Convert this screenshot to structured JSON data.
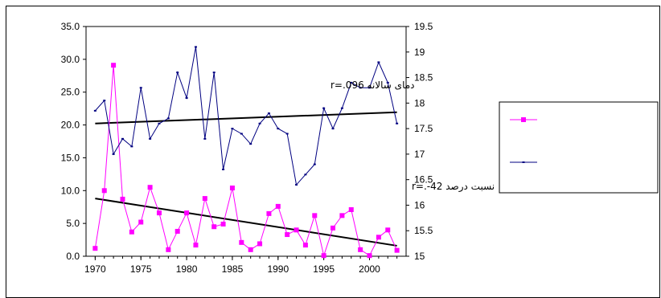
{
  "chart_data": {
    "type": "line",
    "x": [
      1970,
      1971,
      1972,
      1973,
      1974,
      1975,
      1976,
      1977,
      1978,
      1979,
      1980,
      1981,
      1982,
      1983,
      1984,
      1985,
      1986,
      1987,
      1988,
      1989,
      1990,
      1991,
      1992,
      1993,
      1994,
      1995,
      1996,
      1997,
      1998,
      1999,
      2000,
      2001,
      2002,
      2003
    ],
    "xlim": [
      1969,
      2004
    ],
    "xticks": [
      "1970",
      "1975",
      "1980",
      "1985",
      "1990",
      "1995",
      "2000"
    ],
    "y_left": {
      "ylim": [
        0,
        35
      ],
      "ticks": [
        "0.0",
        "5.0",
        "10.0",
        "15.0",
        "20.0",
        "25.0",
        "30.0",
        "35.0"
      ]
    },
    "y_right": {
      "ylim": [
        15,
        19.5
      ],
      "ticks": [
        "15",
        "15.5",
        "16",
        "16.5",
        "17",
        "17.5",
        "18",
        "18.5",
        "19",
        "19.5"
      ]
    },
    "series": [
      {
        "axis": "left",
        "color": "#ff00ff",
        "marker": "square",
        "values": [
          1.2,
          10.0,
          29.1,
          8.7,
          3.7,
          5.2,
          10.5,
          6.6,
          1.0,
          3.8,
          6.6,
          1.7,
          8.8,
          4.5,
          4.9,
          10.4,
          2.1,
          1.0,
          1.9,
          6.5,
          7.6,
          3.3,
          4.0,
          1.7,
          6.2,
          0.1,
          4.3,
          6.2,
          7.1,
          1.0,
          0.1,
          2.9,
          4.0,
          0.9
        ]
      },
      {
        "axis": "right",
        "color": "#000080",
        "marker": "dash",
        "values": [
          17.85,
          18.05,
          17.0,
          17.3,
          17.15,
          18.3,
          17.3,
          17.6,
          17.7,
          18.6,
          18.1,
          19.1,
          17.3,
          18.6,
          16.7,
          17.5,
          17.4,
          17.2,
          17.6,
          17.8,
          17.5,
          17.4,
          16.4,
          16.6,
          16.8,
          17.9,
          17.5,
          17.9,
          18.4,
          18.3,
          18.3,
          18.8,
          18.4,
          17.6
        ]
      }
    ],
    "trendlines": [
      {
        "axis": "right",
        "x": [
          1970,
          2003
        ],
        "y": [
          17.6,
          17.82
        ],
        "color": "#000000"
      },
      {
        "axis": "left",
        "x": [
          1970,
          2003
        ],
        "y": [
          8.8,
          1.6
        ],
        "color": "#000000"
      }
    ],
    "annotations": [
      {
        "text": "دمای سالانه r=.096"
      },
      {
        "text": "نسبت درصد  r=.-42"
      }
    ],
    "grid": false,
    "legend_position": "right"
  }
}
